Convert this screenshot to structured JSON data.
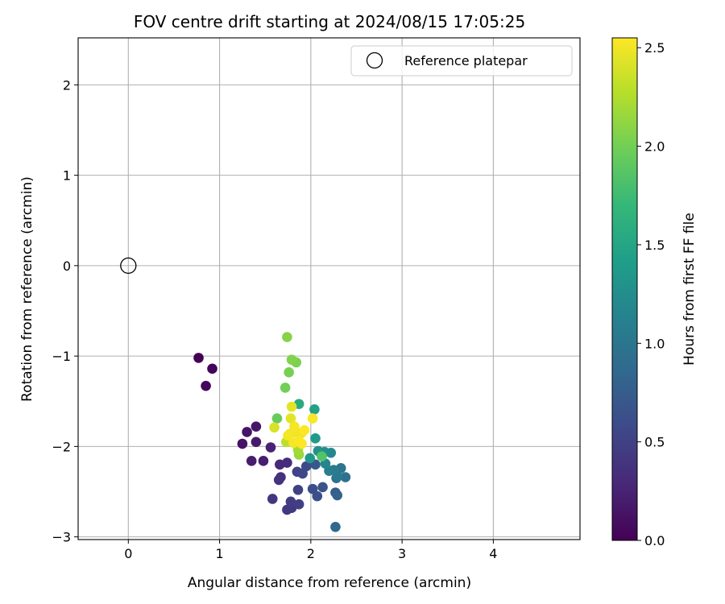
{
  "chart_data": {
    "type": "scatter",
    "title": "FOV centre drift starting at 2024/08/15 17:05:25",
    "xlabel": "Angular distance from reference (arcmin)",
    "ylabel": "Rotation from reference (arcmin)",
    "xlim": [
      -0.55,
      4.95
    ],
    "ylim": [
      -3.03,
      2.52
    ],
    "xticks": [
      0,
      1,
      2,
      3,
      4
    ],
    "yticks": [
      -3,
      -2,
      -1,
      0,
      1,
      2
    ],
    "x_tick_labels": [
      "0",
      "1",
      "2",
      "3",
      "4"
    ],
    "y_tick_labels": [
      "−3",
      "−2",
      "−1",
      "0",
      "1",
      "2"
    ],
    "grid": true,
    "legend": {
      "placement": "top-right",
      "label": "Reference platepar",
      "marker": "open-circle"
    },
    "reference_point": {
      "x": 0,
      "y": 0
    },
    "colorbar": {
      "label": "Hours from first FF file",
      "colormap": "viridis",
      "range": [
        0,
        2.55
      ],
      "ticks": [
        0.0,
        0.5,
        1.0,
        1.5,
        2.0,
        2.5
      ],
      "tick_labels": [
        "0.0",
        "0.5",
        "1.0",
        "1.5",
        "2.0",
        "2.5"
      ]
    },
    "colormap_stops": [
      "#440154",
      "#482878",
      "#3e4989",
      "#31688e",
      "#26828e",
      "#1f9e89",
      "#35b779",
      "#6ece58",
      "#b5de2b",
      "#fde725"
    ],
    "point_format": [
      "x",
      "y",
      "hours"
    ],
    "points": [
      [
        0.77,
        -1.02,
        0.0
      ],
      [
        0.92,
        -1.14,
        0.03
      ],
      [
        0.85,
        -1.33,
        0.05
      ],
      [
        1.25,
        -1.97,
        0.12
      ],
      [
        1.3,
        -1.84,
        0.14
      ],
      [
        1.4,
        -1.78,
        0.15
      ],
      [
        1.4,
        -1.95,
        0.18
      ],
      [
        1.35,
        -2.16,
        0.2
      ],
      [
        1.48,
        -2.16,
        0.22
      ],
      [
        1.56,
        -2.01,
        0.25
      ],
      [
        1.66,
        -2.2,
        0.3
      ],
      [
        1.74,
        -2.18,
        0.32
      ],
      [
        1.67,
        -2.34,
        0.35
      ],
      [
        1.65,
        -2.37,
        0.38
      ],
      [
        1.58,
        -2.58,
        0.4
      ],
      [
        1.74,
        -2.7,
        0.42
      ],
      [
        1.79,
        -2.68,
        0.44
      ],
      [
        1.78,
        -2.61,
        0.46
      ],
      [
        1.87,
        -2.64,
        0.48
      ],
      [
        1.86,
        -2.48,
        0.5
      ],
      [
        1.85,
        -2.28,
        0.52
      ],
      [
        1.91,
        -2.3,
        0.55
      ],
      [
        1.95,
        -2.22,
        0.58
      ],
      [
        2.02,
        -2.47,
        0.6
      ],
      [
        2.07,
        -2.55,
        0.62
      ],
      [
        2.13,
        -2.45,
        0.66
      ],
      [
        2.05,
        -2.2,
        0.7
      ],
      [
        2.27,
        -2.51,
        0.75
      ],
      [
        2.29,
        -2.54,
        0.8
      ],
      [
        2.27,
        -2.89,
        0.85
      ],
      [
        2.28,
        -2.35,
        0.9
      ],
      [
        2.38,
        -2.34,
        0.95
      ],
      [
        2.33,
        -2.24,
        1.0
      ],
      [
        2.29,
        -2.33,
        1.03
      ],
      [
        2.25,
        -2.26,
        1.06
      ],
      [
        2.2,
        -2.27,
        1.1
      ],
      [
        2.16,
        -2.19,
        1.15
      ],
      [
        2.22,
        -2.07,
        1.2
      ],
      [
        2.15,
        -2.06,
        1.25
      ],
      [
        2.08,
        -2.05,
        1.3
      ],
      [
        1.99,
        -2.13,
        1.35
      ],
      [
        2.05,
        -1.91,
        1.4
      ],
      [
        2.04,
        -1.59,
        1.45
      ],
      [
        1.87,
        -1.53,
        1.55
      ],
      [
        2.12,
        -2.11,
        1.85
      ],
      [
        1.63,
        -1.69,
        1.95
      ],
      [
        1.72,
        -1.35,
        2.0
      ],
      [
        1.76,
        -1.18,
        2.02
      ],
      [
        1.84,
        -1.07,
        2.04
      ],
      [
        1.79,
        -1.04,
        2.06
      ],
      [
        1.74,
        -0.79,
        2.08
      ],
      [
        1.87,
        -2.09,
        2.15
      ],
      [
        1.86,
        -2.04,
        2.2
      ],
      [
        1.73,
        -1.95,
        2.3
      ],
      [
        1.6,
        -1.79,
        2.4
      ],
      [
        1.79,
        -1.56,
        2.45
      ],
      [
        1.78,
        -1.69,
        2.45
      ],
      [
        1.84,
        -1.85,
        2.5
      ],
      [
        1.9,
        -1.85,
        2.5
      ],
      [
        1.77,
        -1.86,
        2.5
      ],
      [
        1.82,
        -1.78,
        2.52
      ],
      [
        1.81,
        -1.96,
        2.52
      ],
      [
        1.75,
        -1.88,
        2.52
      ],
      [
        2.02,
        -1.69,
        2.54
      ],
      [
        1.87,
        -1.94,
        2.54
      ],
      [
        1.9,
        -1.97,
        2.55
      ],
      [
        1.93,
        -1.82,
        2.55
      ]
    ]
  }
}
